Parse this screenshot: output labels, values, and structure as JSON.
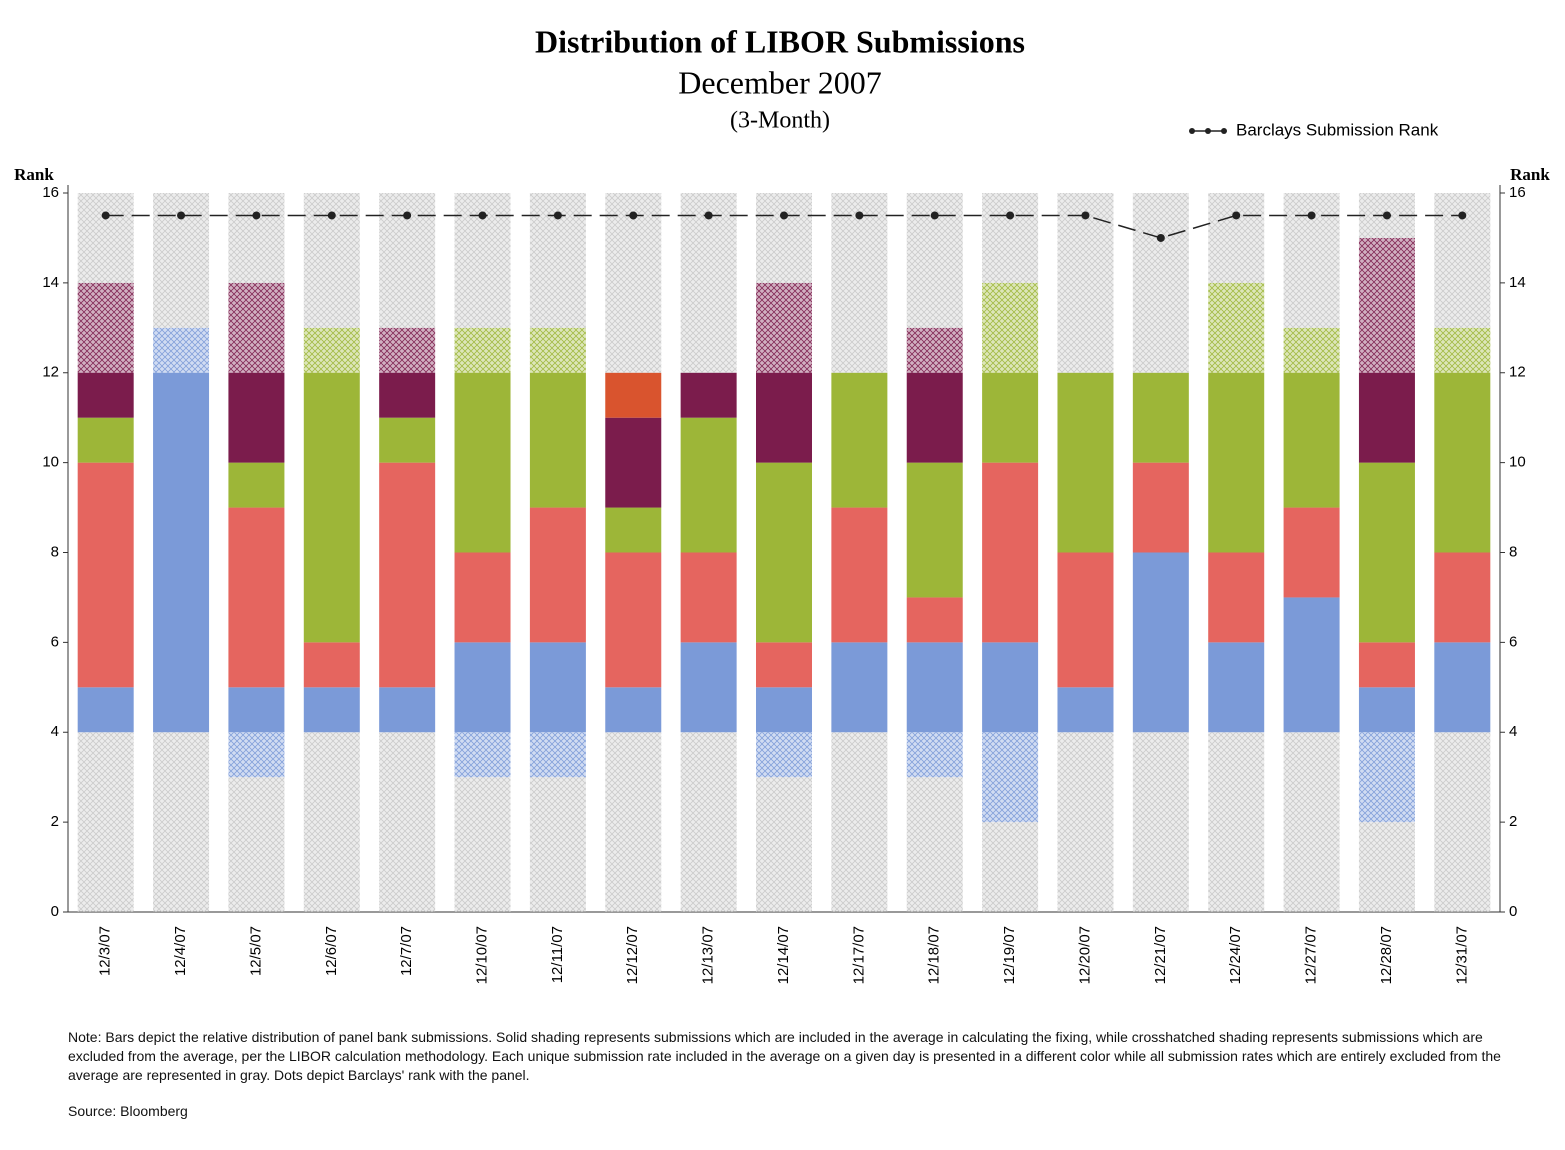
{
  "chart_data": {
    "type": "bar",
    "title": "Distribution of LIBOR Submissions",
    "subtitle": "December 2007",
    "subtitle2": "(3-Month)",
    "ylabel": "Rank",
    "y2label": "Rank",
    "ylim": [
      0,
      16
    ],
    "yticks": [
      0,
      2,
      4,
      6,
      8,
      10,
      12,
      14,
      16
    ],
    "y2lim": [
      0,
      16
    ],
    "y2ticks": [
      0,
      2,
      4,
      6,
      8,
      10,
      12,
      14,
      16
    ],
    "categories": [
      "12/3/07",
      "12/4/07",
      "12/5/07",
      "12/6/07",
      "12/7/07",
      "12/10/07",
      "12/11/07",
      "12/12/07",
      "12/13/07",
      "12/14/07",
      "12/17/07",
      "12/18/07",
      "12/19/07",
      "12/20/07",
      "12/21/07",
      "12/24/07",
      "12/27/07",
      "12/28/07",
      "12/31/07"
    ],
    "bars": [
      {
        "segments": [
          4,
          1,
          5,
          1,
          1,
          2,
          2
        ],
        "colors": [
          "#c8c8c8",
          "#7b9ad8",
          "#e5655f",
          "#9db638",
          "#7b1c4c",
          "#7b1c4c",
          "#c8c8c8"
        ],
        "hatched": [
          true,
          false,
          false,
          false,
          false,
          true,
          true
        ]
      },
      {
        "segments": [
          4,
          8,
          1,
          3
        ],
        "colors": [
          "#c8c8c8",
          "#7b9ad8",
          "#7b9ad8",
          "#c8c8c8"
        ],
        "hatched": [
          true,
          false,
          true,
          true
        ]
      },
      {
        "segments": [
          3,
          1,
          1,
          4,
          1,
          2,
          2,
          2
        ],
        "colors": [
          "#c8c8c8",
          "#7b9ad8",
          "#7b9ad8",
          "#e5655f",
          "#9db638",
          "#7b1c4c",
          "#7b1c4c",
          "#c8c8c8"
        ],
        "hatched": [
          true,
          true,
          false,
          false,
          false,
          false,
          true,
          true
        ]
      },
      {
        "segments": [
          4,
          1,
          1,
          6,
          1,
          3
        ],
        "colors": [
          "#c8c8c8",
          "#7b9ad8",
          "#e5655f",
          "#9db638",
          "#9db638",
          "#c8c8c8"
        ],
        "hatched": [
          true,
          false,
          false,
          false,
          true,
          true
        ]
      },
      {
        "segments": [
          4,
          1,
          5,
          1,
          1,
          1,
          3
        ],
        "colors": [
          "#c8c8c8",
          "#7b9ad8",
          "#e5655f",
          "#9db638",
          "#7b1c4c",
          "#7b1c4c",
          "#c8c8c8"
        ],
        "hatched": [
          true,
          false,
          false,
          false,
          false,
          true,
          true
        ]
      },
      {
        "segments": [
          3,
          1,
          2,
          2,
          4,
          1,
          3
        ],
        "colors": [
          "#c8c8c8",
          "#7b9ad8",
          "#7b9ad8",
          "#e5655f",
          "#9db638",
          "#9db638",
          "#c8c8c8"
        ],
        "hatched": [
          true,
          true,
          false,
          false,
          false,
          true,
          true
        ]
      },
      {
        "segments": [
          3,
          1,
          2,
          3,
          3,
          1,
          3
        ],
        "colors": [
          "#c8c8c8",
          "#7b9ad8",
          "#7b9ad8",
          "#e5655f",
          "#9db638",
          "#9db638",
          "#c8c8c8"
        ],
        "hatched": [
          true,
          true,
          false,
          false,
          false,
          true,
          true
        ]
      },
      {
        "segments": [
          4,
          1,
          3,
          1,
          2,
          1,
          4
        ],
        "colors": [
          "#c8c8c8",
          "#7b9ad8",
          "#e5655f",
          "#9db638",
          "#7b1c4c",
          "#d9542e",
          "#c8c8c8"
        ],
        "hatched": [
          true,
          false,
          false,
          false,
          false,
          false,
          true
        ]
      },
      {
        "segments": [
          4,
          2,
          2,
          3,
          1,
          4
        ],
        "colors": [
          "#c8c8c8",
          "#7b9ad8",
          "#e5655f",
          "#9db638",
          "#7b1c4c",
          "#c8c8c8"
        ],
        "hatched": [
          true,
          false,
          false,
          false,
          false,
          true
        ]
      },
      {
        "segments": [
          3,
          1,
          1,
          1,
          4,
          2,
          2,
          2
        ],
        "colors": [
          "#c8c8c8",
          "#7b9ad8",
          "#7b9ad8",
          "#e5655f",
          "#9db638",
          "#7b1c4c",
          "#7b1c4c",
          "#c8c8c8"
        ],
        "hatched": [
          true,
          true,
          false,
          false,
          false,
          false,
          true,
          true
        ]
      },
      {
        "segments": [
          4,
          2,
          3,
          3,
          4
        ],
        "colors": [
          "#c8c8c8",
          "#7b9ad8",
          "#e5655f",
          "#9db638",
          "#c8c8c8"
        ],
        "hatched": [
          true,
          false,
          false,
          false,
          true
        ]
      },
      {
        "segments": [
          3,
          1,
          2,
          1,
          3,
          2,
          1,
          3
        ],
        "colors": [
          "#c8c8c8",
          "#7b9ad8",
          "#7b9ad8",
          "#e5655f",
          "#9db638",
          "#7b1c4c",
          "#7b1c4c",
          "#c8c8c8"
        ],
        "hatched": [
          true,
          true,
          false,
          false,
          false,
          false,
          true,
          true
        ]
      },
      {
        "segments": [
          2,
          2,
          2,
          4,
          2,
          2,
          2
        ],
        "colors": [
          "#c8c8c8",
          "#7b9ad8",
          "#7b9ad8",
          "#e5655f",
          "#9db638",
          "#9db638",
          "#c8c8c8"
        ],
        "hatched": [
          true,
          true,
          false,
          false,
          false,
          true,
          true
        ]
      },
      {
        "segments": [
          4,
          1,
          3,
          4,
          4
        ],
        "colors": [
          "#c8c8c8",
          "#7b9ad8",
          "#e5655f",
          "#9db638",
          "#c8c8c8"
        ],
        "hatched": [
          true,
          false,
          false,
          false,
          true
        ]
      },
      {
        "segments": [
          4,
          4,
          2,
          2,
          4
        ],
        "colors": [
          "#c8c8c8",
          "#7b9ad8",
          "#e5655f",
          "#9db638",
          "#c8c8c8"
        ],
        "hatched": [
          true,
          false,
          false,
          false,
          true
        ]
      },
      {
        "segments": [
          4,
          2,
          2,
          4,
          2,
          2
        ],
        "colors": [
          "#c8c8c8",
          "#7b9ad8",
          "#e5655f",
          "#9db638",
          "#9db638",
          "#c8c8c8"
        ],
        "hatched": [
          true,
          false,
          false,
          false,
          true,
          true
        ]
      },
      {
        "segments": [
          4,
          3,
          2,
          3,
          1,
          3
        ],
        "colors": [
          "#c8c8c8",
          "#7b9ad8",
          "#e5655f",
          "#9db638",
          "#9db638",
          "#c8c8c8"
        ],
        "hatched": [
          true,
          false,
          false,
          false,
          true,
          true
        ]
      },
      {
        "segments": [
          2,
          2,
          1,
          1,
          4,
          2,
          3,
          1
        ],
        "colors": [
          "#c8c8c8",
          "#7b9ad8",
          "#7b9ad8",
          "#e5655f",
          "#9db638",
          "#7b1c4c",
          "#7b1c4c",
          "#c8c8c8"
        ],
        "hatched": [
          true,
          true,
          false,
          false,
          false,
          false,
          true,
          true
        ]
      },
      {
        "segments": [
          4,
          2,
          2,
          4,
          1,
          3
        ],
        "colors": [
          "#c8c8c8",
          "#7b9ad8",
          "#e5655f",
          "#9db638",
          "#9db638",
          "#c8c8c8"
        ],
        "hatched": [
          true,
          false,
          false,
          false,
          true,
          true
        ]
      }
    ],
    "barclays": {
      "name": "Barclays Submission Rank",
      "color": "#222222",
      "values": [
        15.5,
        15.5,
        15.5,
        15.5,
        15.5,
        15.5,
        15.5,
        15.5,
        15.5,
        15.5,
        15.5,
        15.5,
        15.5,
        15.5,
        15,
        15.5,
        15.5,
        15.5,
        15.5
      ]
    },
    "legend": "top-right",
    "note": "Note:  Bars depict the relative distribution of panel bank submissions.  Solid shading represents submissions which are included in the average in calculating the fixing, while crosshatched shading represents submissions which are excluded from the average, per the LIBOR calculation methodology.  Each unique submission rate included in the average on a given day is presented in a different color while all submission rates which are entirely excluded from the average are represented in gray.  Dots depict Barclays' rank with the panel.",
    "source": "Source: Bloomberg"
  }
}
